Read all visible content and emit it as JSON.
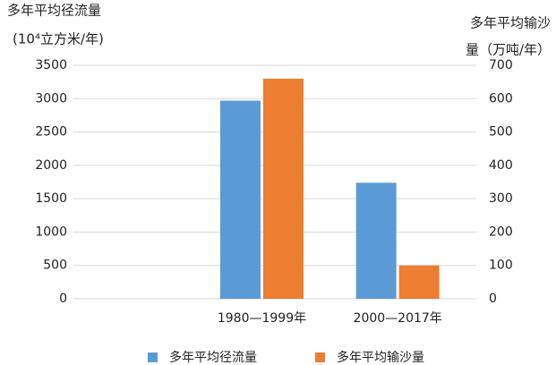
{
  "chart_data": {
    "type": "bar",
    "y_label": [
      "多年平均径流量",
      "(10⁴立方米/年)"
    ],
    "y2_label": [
      "多年平均输沙",
      "量（万吨/年）"
    ],
    "categories": [
      null,
      "1980—1999年",
      "2000—2017年"
    ],
    "series": [
      {
        "name": "多年平均径流量",
        "color": "#5b9bd5",
        "values": [
          null,
          2970,
          1740
        ]
      },
      {
        "name": "多年平均输沙量",
        "color": "#ed7d31",
        "axis": "y2",
        "values": [
          null,
          660,
          100
        ]
      }
    ],
    "ylim": [
      0,
      3500
    ],
    "yticks": [
      0,
      500,
      1000,
      1500,
      2000,
      2500,
      3000,
      3500
    ],
    "y2lim": [
      0,
      700
    ],
    "y2ticks": [
      0,
      100,
      200,
      300,
      400,
      500,
      600,
      700
    ],
    "grid": true,
    "legend": "bottom"
  }
}
